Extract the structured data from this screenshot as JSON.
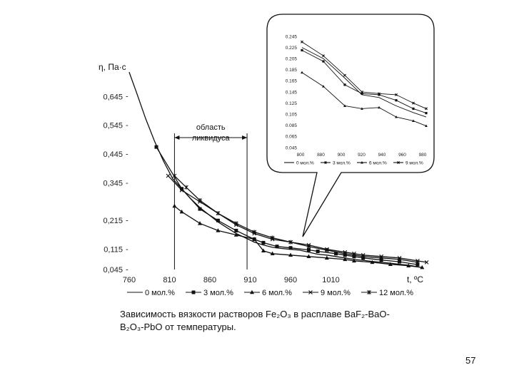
{
  "chart_data": [
    {
      "type": "line",
      "ylabel": "η, Па·с",
      "xlabel": "t, ºC",
      "xlim": [
        755,
        1095
      ],
      "ylim": [
        0.045,
        0.745
      ],
      "x_ticks": [
        "760",
        "810",
        "860",
        "910",
        "960",
        "1010"
      ],
      "y_ticks": [
        "0,045",
        "0,115",
        "0,215",
        "0,345",
        "0,445",
        "0,545",
        "0,645"
      ],
      "y_tick_values": [
        0.045,
        0.115,
        0.215,
        0.345,
        0.445,
        0.545,
        0.645
      ],
      "region": {
        "label_line1": "область",
        "label_line2": "ликвидуса",
        "x_from": 812,
        "x_to": 892
      },
      "grid": false,
      "legend_position": "bottom",
      "series": [
        {
          "name": "0 мол.%",
          "marker": "none",
          "points": [
            [
              762,
              0.73
            ],
            [
              770,
              0.66
            ],
            [
              780,
              0.57
            ],
            [
              790,
              0.49
            ],
            [
              800,
              0.42
            ],
            [
              810,
              0.36
            ],
            [
              820,
              0.325
            ],
            [
              830,
              0.29
            ],
            [
              840,
              0.26
            ],
            [
              850,
              0.235
            ],
            [
              860,
              0.21
            ],
            [
              870,
              0.19
            ],
            [
              880,
              0.17
            ],
            [
              890,
              0.155
            ],
            [
              900,
              0.14
            ],
            [
              910,
              0.13
            ],
            [
              920,
              0.122
            ],
            [
              930,
              0.118
            ],
            [
              940,
              0.115
            ],
            [
              950,
              0.112
            ],
            [
              960,
              0.105
            ],
            [
              970,
              0.098
            ],
            [
              980,
              0.095
            ],
            [
              990,
              0.09
            ],
            [
              1000,
              0.085
            ],
            [
              1010,
              0.08
            ],
            [
              1020,
              0.077
            ],
            [
              1030,
              0.073
            ],
            [
              1040,
              0.07
            ],
            [
              1050,
              0.067
            ],
            [
              1060,
              0.063
            ],
            [
              1070,
              0.06
            ],
            [
              1080,
              0.055
            ]
          ]
        },
        {
          "name": "3 мол.%",
          "marker": "square",
          "points": [
            [
              792,
              0.47
            ],
            [
              820,
              0.325
            ],
            [
              840,
              0.255
            ],
            [
              860,
              0.215
            ],
            [
              880,
              0.18
            ],
            [
              900,
              0.15
            ],
            [
              910,
              0.138
            ],
            [
              925,
              0.125
            ],
            [
              940,
              0.12
            ],
            [
              960,
              0.113
            ],
            [
              970,
              0.108
            ],
            [
              990,
              0.1
            ],
            [
              1000,
              0.095
            ],
            [
              1010,
              0.09
            ],
            [
              1020,
              0.085
            ],
            [
              1040,
              0.078
            ],
            [
              1060,
              0.072
            ],
            [
              1080,
              0.062
            ]
          ]
        },
        {
          "name": "6 мол.%",
          "marker": "triangle",
          "points": [
            [
              812,
              0.265
            ],
            [
              820,
              0.245
            ],
            [
              840,
              0.205
            ],
            [
              860,
              0.18
            ],
            [
              880,
              0.165
            ],
            [
              900,
              0.15
            ],
            [
              910,
              0.11
            ],
            [
              920,
              0.1
            ],
            [
              940,
              0.095
            ],
            [
              960,
              0.09
            ],
            [
              980,
              0.085
            ],
            [
              1000,
              0.08
            ],
            [
              1010,
              0.075
            ],
            [
              1030,
              0.07
            ],
            [
              1050,
              0.063
            ],
            [
              1070,
              0.058
            ],
            [
              1085,
              0.052
            ]
          ]
        },
        {
          "name": "9 мол.%",
          "marker": "x",
          "points": [
            [
              805,
              0.37
            ],
            [
              820,
              0.32
            ],
            [
              840,
              0.28
            ],
            [
              860,
              0.24
            ],
            [
              880,
              0.2
            ],
            [
              900,
              0.17
            ],
            [
              920,
              0.15
            ],
            [
              940,
              0.14
            ],
            [
              960,
              0.13
            ],
            [
              980,
              0.115
            ],
            [
              1000,
              0.105
            ],
            [
              1010,
              0.1
            ],
            [
              1020,
              0.095
            ],
            [
              1040,
              0.09
            ],
            [
              1060,
              0.085
            ],
            [
              1080,
              0.075
            ],
            [
              1090,
              0.07
            ]
          ]
        },
        {
          "name": "12 мол.%",
          "marker": "star",
          "points": [
            [
              812,
              0.37
            ],
            [
              825,
              0.33
            ],
            [
              840,
              0.285
            ],
            [
              860,
              0.24
            ],
            [
              880,
              0.205
            ],
            [
              900,
              0.175
            ],
            [
              920,
              0.155
            ],
            [
              940,
              0.14
            ],
            [
              960,
              0.125
            ],
            [
              980,
              0.112
            ],
            [
              1000,
              0.1
            ],
            [
              1010,
              0.095
            ],
            [
              1020,
              0.09
            ],
            [
              1040,
              0.085
            ],
            [
              1060,
              0.08
            ],
            [
              1080,
              0.07
            ]
          ]
        }
      ]
    },
    {
      "type": "line",
      "xlim": [
        795,
        1095
      ],
      "ylim": [
        0.045,
        0.245
      ],
      "x_ticks": [
        "800",
        "880",
        "900",
        "920",
        "940",
        "960",
        "980"
      ],
      "y_ticks": [
        "0.045",
        "0.065",
        "0.085",
        "0.105",
        "0.125",
        "0.145",
        "0.165",
        "0.185",
        "0.205",
        "0.225",
        "0.245"
      ],
      "y_tick_values": [
        0.045,
        0.065,
        0.085,
        0.105,
        0.125,
        0.145,
        0.165,
        0.185,
        0.205,
        0.225,
        0.245
      ],
      "legend_position": "bottom",
      "series": [
        {
          "name": "0 мол.%",
          "marker": "none",
          "points": [
            [
              800,
              0.225
            ],
            [
              850,
              0.205
            ],
            [
              900,
              0.17
            ],
            [
              940,
              0.14
            ],
            [
              980,
              0.135
            ],
            [
              1020,
              0.12
            ],
            [
              1060,
              0.108
            ],
            [
              1090,
              0.1
            ]
          ]
        },
        {
          "name": "3 мол.%",
          "marker": "square",
          "points": [
            [
              800,
              0.22
            ],
            [
              850,
              0.2
            ],
            [
              900,
              0.158
            ],
            [
              940,
              0.142
            ],
            [
              980,
              0.14
            ],
            [
              1020,
              0.13
            ],
            [
              1060,
              0.115
            ],
            [
              1090,
              0.107
            ]
          ]
        },
        {
          "name": "6 мол.%",
          "marker": "triangle",
          "points": [
            [
              800,
              0.18
            ],
            [
              850,
              0.155
            ],
            [
              900,
              0.12
            ],
            [
              940,
              0.115
            ],
            [
              980,
              0.117
            ],
            [
              1020,
              0.1
            ],
            [
              1060,
              0.093
            ],
            [
              1090,
              0.084
            ]
          ]
        },
        {
          "name": "9 мол.%",
          "marker": "x",
          "points": [
            [
              800,
              0.235
            ],
            [
              850,
              0.21
            ],
            [
              900,
              0.175
            ],
            [
              940,
              0.145
            ],
            [
              980,
              0.142
            ],
            [
              1020,
              0.14
            ],
            [
              1060,
              0.125
            ],
            [
              1090,
              0.115
            ]
          ]
        }
      ]
    }
  ],
  "caption": {
    "line1": "Зависимость вязкости растворов Fe₂O₃ в расплаве BaF₂-BaO-",
    "line2": "B₂O₃-PbO от температуры."
  },
  "page_number": "57"
}
